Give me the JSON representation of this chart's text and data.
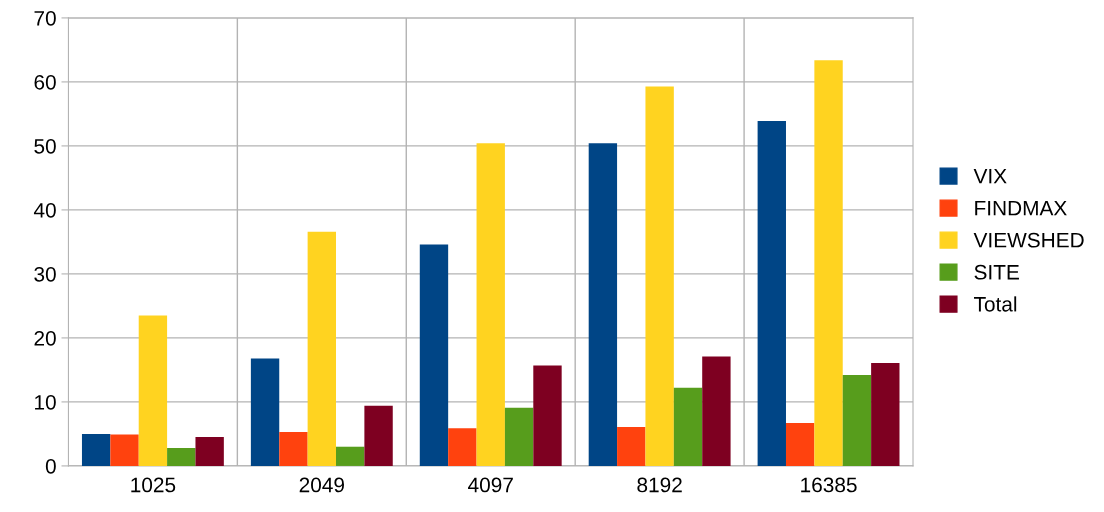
{
  "chart_data": {
    "type": "bar",
    "categories": [
      "1025",
      "2049",
      "4097",
      "8192",
      "16385"
    ],
    "series": [
      {
        "name": "VIX",
        "color": "#004586",
        "values": [
          5.0,
          16.8,
          34.6,
          50.4,
          53.9
        ]
      },
      {
        "name": "FINDMAX",
        "color": "#ff420e",
        "values": [
          4.9,
          5.3,
          5.9,
          6.1,
          6.7
        ]
      },
      {
        "name": "VIEWSHED",
        "color": "#ffd320",
        "values": [
          23.5,
          36.6,
          50.4,
          59.3,
          63.4
        ]
      },
      {
        "name": "SITE",
        "color": "#579d1c",
        "values": [
          2.8,
          3.0,
          9.1,
          12.2,
          14.2
        ]
      },
      {
        "name": "Total",
        "color": "#7e0021",
        "values": [
          4.5,
          9.4,
          15.7,
          17.1,
          16.1
        ]
      }
    ],
    "ylim": [
      0,
      70
    ],
    "yticks": [
      0,
      10,
      20,
      30,
      40,
      50,
      60,
      70
    ],
    "grid": true,
    "legend": "right"
  }
}
